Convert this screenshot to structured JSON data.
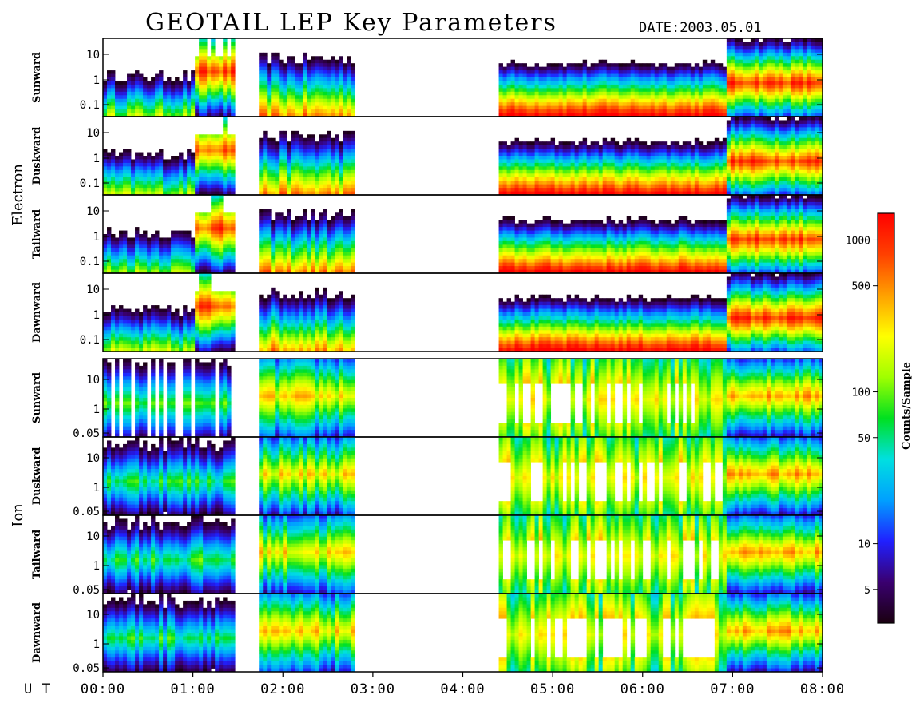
{
  "chart_data": {
    "type": "heatmap",
    "title": "GEOTAIL LEP Key Parameters",
    "date_label": "DATE:",
    "date_value": "2003.05.01",
    "x_axis": {
      "label": "U T",
      "ticks": [
        "00:00",
        "01:00",
        "02:00",
        "03:00",
        "04:00",
        "05:00",
        "06:00",
        "07:00",
        "08:00"
      ],
      "range_hours": [
        0,
        8
      ]
    },
    "data_gaps_hours": [
      [
        1.47,
        1.75
      ],
      [
        2.8,
        4.4
      ]
    ],
    "groups": [
      {
        "name": "Electron",
        "panels": [
          {
            "direction": "Sunward",
            "yticks": [
              "10",
              "1",
              "0.1"
            ],
            "y_range": [
              0.05,
              20
            ],
            "y_scale": "log"
          },
          {
            "direction": "Duskward",
            "yticks": [
              "10",
              "1",
              "0.1"
            ],
            "y_range": [
              0.05,
              20
            ],
            "y_scale": "log"
          },
          {
            "direction": "Tailward",
            "yticks": [
              "10",
              "1",
              "0.1"
            ],
            "y_range": [
              0.05,
              20
            ],
            "y_scale": "log"
          },
          {
            "direction": "Dawnward",
            "yticks": [
              "10",
              "1",
              "0.1"
            ],
            "y_range": [
              0.05,
              20
            ],
            "y_scale": "log"
          }
        ]
      },
      {
        "name": "Ion",
        "panels": [
          {
            "direction": "Sunward",
            "yticks": [
              "10",
              "1",
              "0.05"
            ],
            "y_range": [
              0.05,
              30
            ],
            "y_scale": "log"
          },
          {
            "direction": "Duskward",
            "yticks": [
              "10",
              "1",
              "0.05"
            ],
            "y_range": [
              0.05,
              30
            ],
            "y_scale": "log"
          },
          {
            "direction": "Tailward",
            "yticks": [
              "10",
              "1",
              "0.05"
            ],
            "y_range": [
              0.05,
              30
            ],
            "y_scale": "log"
          },
          {
            "direction": "Dawnward",
            "yticks": [
              "10",
              "1",
              "0.05"
            ],
            "y_range": [
              0.05,
              30
            ],
            "y_scale": "log"
          }
        ]
      }
    ],
    "colorbar": {
      "label": "Counts/Sample",
      "scale": "log",
      "range": [
        3,
        1500
      ],
      "ticks": [
        "1000",
        "500",
        "100",
        "50",
        "10",
        "5"
      ]
    },
    "colormap": [
      "#1a0010",
      "#3a0070",
      "#2020ff",
      "#00a0ff",
      "#00e0e0",
      "#00e020",
      "#a0ff00",
      "#ffff00",
      "#ffa000",
      "#ff4000",
      "#ff0000"
    ]
  }
}
